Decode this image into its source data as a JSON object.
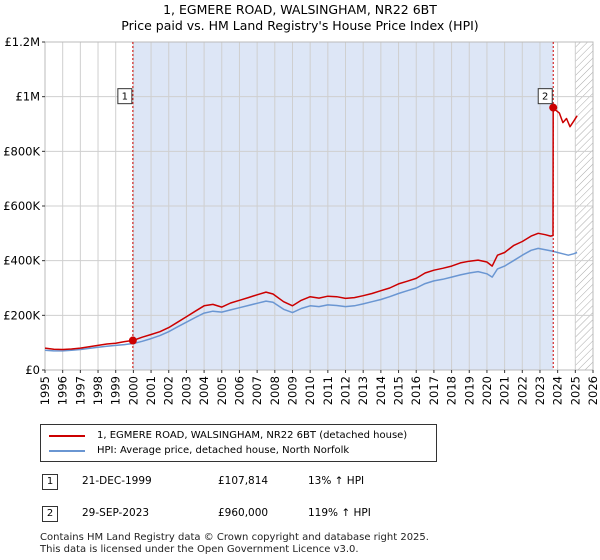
{
  "title_line1": "1, EGMERE ROAD, WALSINGHAM, NR22 6BT",
  "title_line2": "Price paid vs. HM Land Registry's House Price Index (HPI)",
  "chart_data": {
    "type": "line",
    "title": "1, EGMERE ROAD, WALSINGHAM, NR22 6BT — Price paid vs. HM Land Registry's House Price Index (HPI)",
    "xlabel": "",
    "ylabel": "",
    "xlim": [
      1995,
      2026
    ],
    "ylim": [
      0,
      1200000
    ],
    "x_ticks": [
      1995,
      1996,
      1997,
      1998,
      1999,
      2000,
      2001,
      2002,
      2003,
      2004,
      2005,
      2006,
      2007,
      2008,
      2009,
      2010,
      2011,
      2012,
      2013,
      2014,
      2015,
      2016,
      2017,
      2018,
      2019,
      2020,
      2021,
      2022,
      2023,
      2024,
      2025,
      2026
    ],
    "y_ticks": [
      {
        "value": 0,
        "label": "£0"
      },
      {
        "value": 200000,
        "label": "£200K"
      },
      {
        "value": 400000,
        "label": "£400K"
      },
      {
        "value": 600000,
        "label": "£600K"
      },
      {
        "value": 800000,
        "label": "£800K"
      },
      {
        "value": 1000000,
        "label": "£1M"
      },
      {
        "value": 1200000,
        "label": "£1.2M"
      }
    ],
    "grid": true,
    "shaded_period": [
      1999.97,
      2023.75
    ],
    "future_hatch_from": 2025.0,
    "series": [
      {
        "name": "1, EGMERE ROAD, WALSINGHAM, NR22 6BT (detached house)",
        "color": "#cc0000",
        "x": [
          1995.0,
          1995.5,
          1996.0,
          1996.5,
          1997.0,
          1997.5,
          1998.0,
          1998.5,
          1999.0,
          1999.5,
          1999.97,
          2000.5,
          2001.0,
          2001.5,
          2002.0,
          2002.5,
          2003.0,
          2003.5,
          2004.0,
          2004.5,
          2005.0,
          2005.5,
          2006.0,
          2006.5,
          2007.0,
          2007.5,
          2007.9,
          2008.5,
          2009.0,
          2009.5,
          2010.0,
          2010.5,
          2011.0,
          2011.5,
          2012.0,
          2012.5,
          2013.0,
          2013.5,
          2014.0,
          2014.5,
          2015.0,
          2015.5,
          2016.0,
          2016.5,
          2017.0,
          2017.5,
          2018.0,
          2018.5,
          2019.0,
          2019.5,
          2020.0,
          2020.3,
          2020.6,
          2021.0,
          2021.5,
          2022.0,
          2022.5,
          2022.9,
          2023.3,
          2023.6,
          2023.74,
          2023.75,
          2023.9,
          2024.1,
          2024.3,
          2024.5,
          2024.7,
          2024.9,
          2025.1
        ],
        "values": [
          80000,
          76000,
          75000,
          77000,
          80000,
          85000,
          90000,
          95000,
          98000,
          104000,
          107814,
          120000,
          130000,
          140000,
          155000,
          175000,
          195000,
          215000,
          235000,
          240000,
          230000,
          245000,
          255000,
          265000,
          275000,
          285000,
          278000,
          250000,
          235000,
          255000,
          268000,
          263000,
          270000,
          268000,
          262000,
          265000,
          272000,
          280000,
          290000,
          300000,
          315000,
          325000,
          335000,
          355000,
          365000,
          372000,
          380000,
          392000,
          398000,
          402000,
          395000,
          380000,
          420000,
          430000,
          455000,
          470000,
          490000,
          500000,
          495000,
          490000,
          492000,
          960000,
          950000,
          940000,
          905000,
          920000,
          890000,
          910000,
          930000
        ]
      },
      {
        "name": "HPI: Average price, detached house, North Norfolk",
        "color": "#6a96d2",
        "x": [
          1995.0,
          1995.5,
          1996.0,
          1996.5,
          1997.0,
          1997.5,
          1998.0,
          1998.5,
          1999.0,
          1999.5,
          2000.0,
          2000.5,
          2001.0,
          2001.5,
          2002.0,
          2002.5,
          2003.0,
          2003.5,
          2004.0,
          2004.5,
          2005.0,
          2005.5,
          2006.0,
          2006.5,
          2007.0,
          2007.5,
          2007.9,
          2008.5,
          2009.0,
          2009.5,
          2010.0,
          2010.5,
          2011.0,
          2011.5,
          2012.0,
          2012.5,
          2013.0,
          2013.5,
          2014.0,
          2014.5,
          2015.0,
          2015.5,
          2016.0,
          2016.5,
          2017.0,
          2017.5,
          2018.0,
          2018.5,
          2019.0,
          2019.5,
          2020.0,
          2020.3,
          2020.6,
          2021.0,
          2021.5,
          2022.0,
          2022.5,
          2022.9,
          2023.3,
          2023.7,
          2024.0,
          2024.3,
          2024.6,
          2024.9,
          2025.1
        ],
        "values": [
          72000,
          70000,
          70000,
          72000,
          75000,
          79000,
          83000,
          87000,
          90000,
          93000,
          97000,
          105000,
          115000,
          126000,
          140000,
          158000,
          175000,
          192000,
          208000,
          215000,
          212000,
          220000,
          228000,
          236000,
          244000,
          252000,
          248000,
          222000,
          210000,
          225000,
          235000,
          232000,
          238000,
          236000,
          232000,
          235000,
          242000,
          250000,
          258000,
          268000,
          280000,
          290000,
          300000,
          316000,
          326000,
          332000,
          340000,
          348000,
          355000,
          360000,
          352000,
          340000,
          370000,
          380000,
          400000,
          420000,
          438000,
          445000,
          440000,
          435000,
          430000,
          425000,
          420000,
          425000,
          430000
        ]
      }
    ],
    "annotations": [
      {
        "label": "1",
        "x": 1999.97,
        "y": 107814
      },
      {
        "label": "2",
        "x": 2023.75,
        "y": 960000
      }
    ]
  },
  "legend": {
    "items": [
      {
        "label": "1, EGMERE ROAD, WALSINGHAM, NR22 6BT (detached house)",
        "color": "#cc0000"
      },
      {
        "label": "HPI: Average price, detached house, North Norfolk",
        "color": "#6a96d2"
      }
    ]
  },
  "sales": [
    {
      "num": "1",
      "date": "21-DEC-1999",
      "price": "£107,814",
      "hpi": "13% ↑ HPI"
    },
    {
      "num": "2",
      "date": "29-SEP-2023",
      "price": "£960,000",
      "hpi": "119% ↑ HPI"
    }
  ],
  "footer": {
    "line1": "Contains HM Land Registry data © Crown copyright and database right 2025.",
    "line2": "This data is licensed under the Open Government Licence v3.0."
  }
}
